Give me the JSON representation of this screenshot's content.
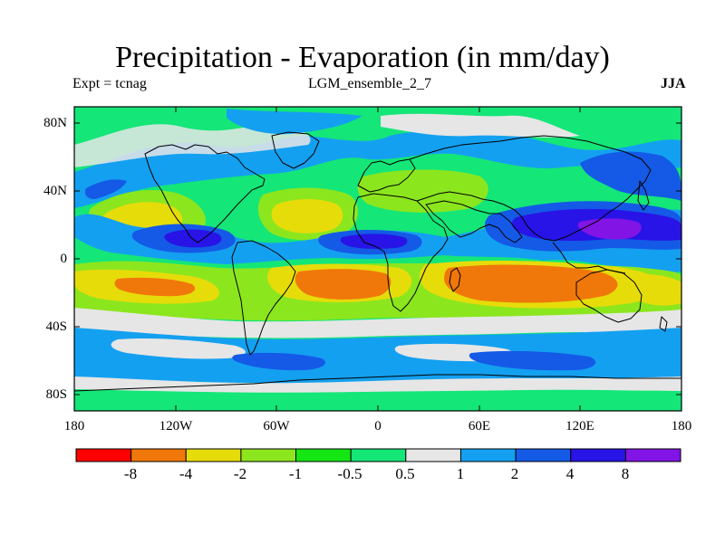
{
  "title": "Precipitation - Evaporation (in mm/day)",
  "subtitle_left": "Expt = tcnag",
  "subtitle_center": "LGM_ensemble_2_7",
  "subtitle_right": "JJA",
  "lat_labels": [
    "80N",
    "40N",
    "0",
    "40S",
    "80S"
  ],
  "lon_labels": [
    "180",
    "120W",
    "60W",
    "0",
    "60E",
    "120E",
    "180"
  ],
  "colorbar": {
    "colors": [
      "#ff0000",
      "#f0780a",
      "#e6dc0a",
      "#8ce61e",
      "#14e614",
      "#14e678",
      "#e6e6e6",
      "#14a0f0",
      "#145ae6",
      "#2814e6",
      "#8214e6"
    ],
    "labels": [
      "-8",
      "-4",
      "-2",
      "-1",
      "-0.5",
      "0.5",
      "1",
      "2",
      "4",
      "8"
    ]
  }
}
